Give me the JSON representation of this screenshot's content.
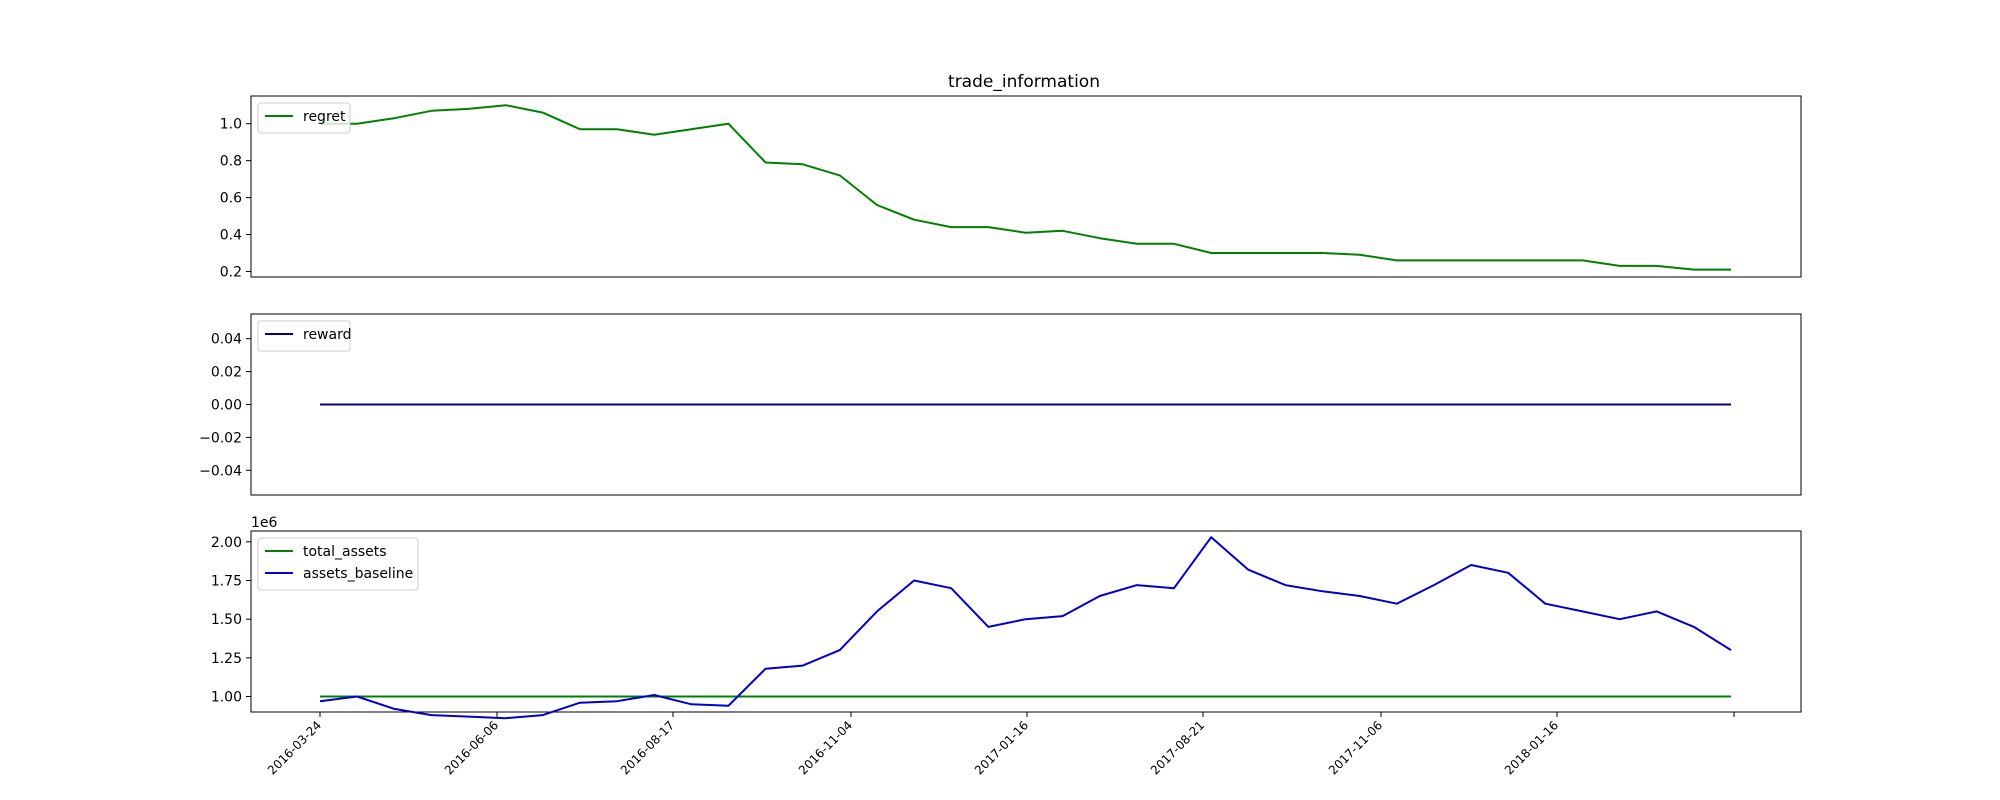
{
  "chart_data": [
    {
      "type": "line",
      "title": "trade_information",
      "x": [
        "2016-03-24",
        "2016-04-14",
        "2016-05-05",
        "2016-05-26",
        "2016-06-16",
        "2016-07-07",
        "2016-07-28",
        "2016-08-18",
        "2016-09-08",
        "2016-09-29",
        "2016-10-20",
        "2016-11-10",
        "2016-12-01",
        "2016-12-22",
        "2017-01-12",
        "2017-02-02",
        "2017-02-23",
        "2017-03-16",
        "2017-04-06",
        "2017-04-27",
        "2017-05-18",
        "2017-06-08",
        "2017-06-29",
        "2017-07-20",
        "2017-08-10",
        "2017-08-31",
        "2017-09-21",
        "2017-10-12",
        "2017-11-02",
        "2017-11-23",
        "2017-12-14",
        "2018-01-04",
        "2018-01-25",
        "2018-02-15",
        "2018-03-08",
        "2018-03-29",
        "2018-04-19",
        "2018-05-10",
        "2018-05-31"
      ],
      "series": [
        {
          "name": "regret",
          "color": "#008000",
          "values": [
            1.0,
            1.0,
            1.03,
            1.07,
            1.08,
            1.1,
            1.06,
            0.97,
            0.97,
            0.94,
            0.97,
            1.0,
            0.79,
            0.78,
            0.72,
            0.56,
            0.48,
            0.44,
            0.44,
            0.41,
            0.42,
            0.38,
            0.35,
            0.35,
            0.3,
            0.3,
            0.3,
            0.3,
            0.29,
            0.26,
            0.26,
            0.26,
            0.26,
            0.26,
            0.26,
            0.23,
            0.23,
            0.21,
            0.21
          ]
        }
      ],
      "yticks": [
        "0.2",
        "0.4",
        "0.6",
        "0.8",
        "1.0"
      ],
      "ylim": [
        0.17,
        1.15
      ],
      "legend": "upper-left"
    },
    {
      "type": "line",
      "x": [
        "2016-03-24",
        "2018-05-31"
      ],
      "series": [
        {
          "name": "reward",
          "color": "#00008b",
          "values": [
            0.0,
            0.0
          ]
        }
      ],
      "yticks": [
        "−0.04",
        "−0.02",
        "0.00",
        "0.02",
        "0.04"
      ],
      "ylim": [
        -0.055,
        0.055
      ],
      "legend": "upper-left"
    },
    {
      "type": "line",
      "x": [
        "2016-03-24",
        "2016-04-14",
        "2016-05-05",
        "2016-05-26",
        "2016-06-16",
        "2016-07-07",
        "2016-07-28",
        "2016-08-18",
        "2016-09-08",
        "2016-09-29",
        "2016-10-20",
        "2016-11-10",
        "2016-12-01",
        "2016-12-22",
        "2017-01-12",
        "2017-02-02",
        "2017-02-23",
        "2017-03-16",
        "2017-04-06",
        "2017-04-27",
        "2017-05-18",
        "2017-06-08",
        "2017-06-29",
        "2017-07-20",
        "2017-08-10",
        "2017-08-31",
        "2017-09-21",
        "2017-10-12",
        "2017-11-02",
        "2017-11-23",
        "2017-12-14",
        "2018-01-04",
        "2018-01-25",
        "2018-02-15",
        "2018-03-08",
        "2018-03-29",
        "2018-04-19",
        "2018-05-10",
        "2018-05-31"
      ],
      "series": [
        {
          "name": "total_assets",
          "color": "#008000",
          "values": [
            1000000,
            1000000,
            1000000,
            1000000,
            1000000,
            1000000,
            1000000,
            1000000,
            1000000,
            1000000,
            1000000,
            1000000,
            1000000,
            1000000,
            1000000,
            1000000,
            1000000,
            1000000,
            1000000,
            1000000,
            1000000,
            1000000,
            1000000,
            1000000,
            1000000,
            1000000,
            1000000,
            1000000,
            1000000,
            1000000,
            1000000,
            1000000,
            1000000,
            1000000,
            1000000,
            1000000,
            1000000,
            1000000,
            1000000
          ]
        },
        {
          "name": "assets_baseline",
          "color": "#0000cd",
          "values": [
            970000,
            1000000,
            920000,
            880000,
            870000,
            860000,
            880000,
            960000,
            970000,
            1010000,
            950000,
            940000,
            1180000,
            1200000,
            1300000,
            1550000,
            1750000,
            1700000,
            1450000,
            1500000,
            1520000,
            1650000,
            1720000,
            1700000,
            2030000,
            1820000,
            1720000,
            1680000,
            1650000,
            1600000,
            1720000,
            1850000,
            1800000,
            1600000,
            1550000,
            1500000,
            1550000,
            1450000,
            1300000
          ]
        }
      ],
      "yticks": [
        "1.00",
        "1.25",
        "1.50",
        "1.75",
        "2.00"
      ],
      "ylim": [
        0.9,
        2.07
      ],
      "y_offset_label": "1e6",
      "legend": "upper-left"
    }
  ],
  "xticks": [
    "2016-03-24",
    "2016-06-06",
    "2016-08-17",
    "2016-11-04",
    "2017-01-16",
    "2017-08-21",
    "2017-11-06",
    "2018-01-16",
    ""
  ]
}
